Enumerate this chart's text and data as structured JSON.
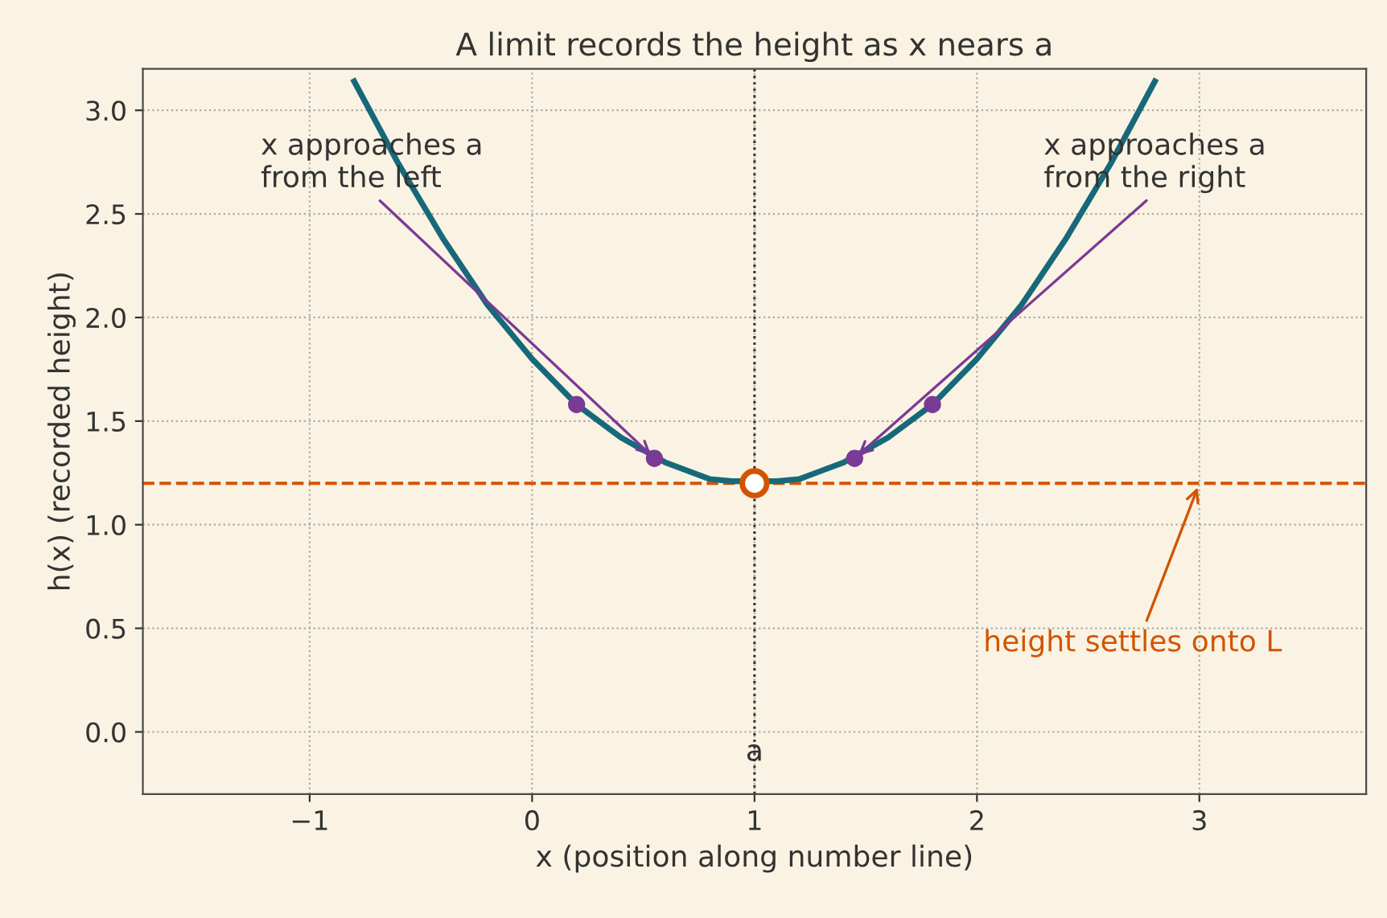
{
  "chart_data": {
    "type": "line",
    "title": "A limit records the height as x nears a",
    "xlabel": "x (position along number line)",
    "ylabel": "h(x) (recorded height)",
    "series": [
      {
        "type": "line",
        "color": "#17697a",
        "x": [
          -0.8,
          -0.6,
          -0.4,
          -0.2,
          0,
          0.2,
          0.4,
          0.6,
          0.8,
          0.9,
          1.1,
          1.2,
          1.4,
          1.6,
          1.8,
          2.0,
          2.2,
          2.4,
          2.6,
          2.8
        ],
        "values": [
          3.14,
          2.74,
          2.38,
          2.06,
          1.8,
          1.58,
          1.42,
          1.3,
          1.22,
          1.21,
          1.21,
          1.22,
          1.3,
          1.42,
          1.58,
          1.8,
          2.06,
          2.38,
          2.74,
          3.14
        ]
      },
      {
        "type": "scatter",
        "color": "#7b3a96",
        "marker": "circle",
        "x": [
          0.2,
          0.55,
          1.45,
          1.8
        ],
        "values": [
          1.58,
          1.32,
          1.32,
          1.58
        ]
      },
      {
        "type": "scatter",
        "color": "#d35400",
        "marker": "circle",
        "x": [
          1.0
        ],
        "values": [
          1.2
        ]
      }
    ],
    "ref_lines": [
      {
        "axis": "y",
        "value": 1.2,
        "color": "#d35400",
        "line_style": "dashed"
      },
      {
        "axis": "x",
        "value": 1,
        "label": "a",
        "color": "#333333",
        "line_style": "dotted"
      }
    ],
    "annotations": [
      {
        "text": "x approaches a\nfrom the left",
        "x": 0.55,
        "y": 1.32
      },
      {
        "text": "x approaches a\nfrom the right",
        "x": 1.45,
        "y": 1.32
      },
      {
        "text": "height settles onto L",
        "x": 3,
        "y": 1.2
      }
    ],
    "xlim": [
      -1.75,
      3.75
    ],
    "ylim": [
      -0.3,
      3.2
    ],
    "xticks": [
      {
        "value": -1,
        "label": "−1"
      },
      0,
      1,
      2,
      3
    ],
    "yticks": [
      {
        "value": 0,
        "label": "0.0"
      },
      0.5,
      {
        "value": 1,
        "label": "1.0"
      },
      1.5,
      {
        "value": 2,
        "label": "2.0"
      },
      2.5,
      {
        "value": 3,
        "label": "3.0"
      }
    ],
    "grid": true,
    "legend": false
  }
}
